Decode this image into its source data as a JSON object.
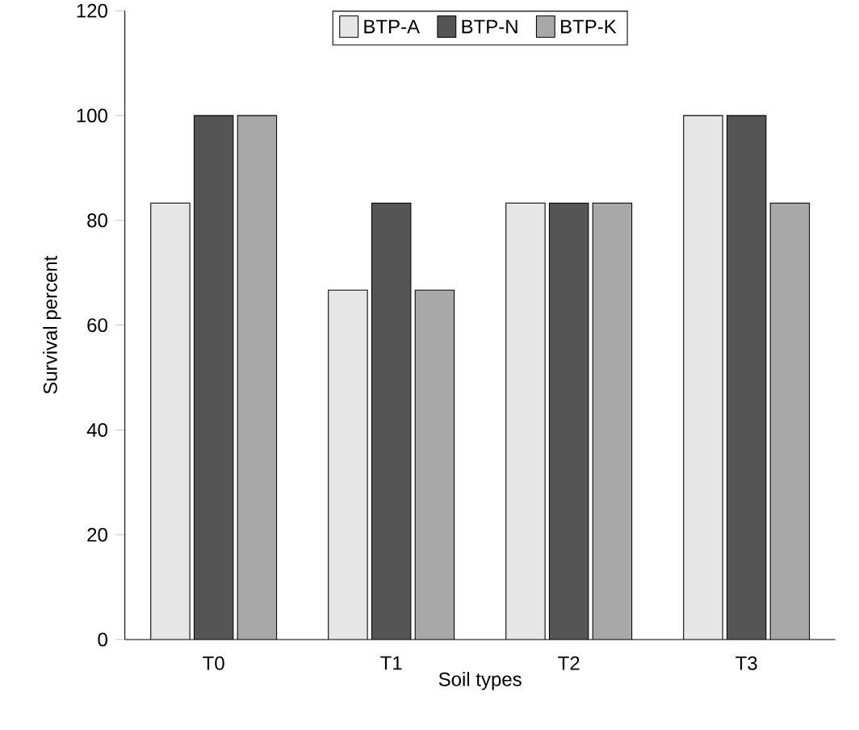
{
  "chart_data": {
    "type": "bar",
    "xlabel": "Soil types",
    "ylabel": "Survival percent",
    "categories": [
      "T0",
      "T1",
      "T2",
      "T3"
    ],
    "series": [
      {
        "name": "BTP-A",
        "color": "#e6e6e6",
        "values": [
          83.3,
          66.7,
          83.3,
          100
        ]
      },
      {
        "name": "BTP-N",
        "color": "#555555",
        "values": [
          100,
          83.3,
          83.3,
          100
        ]
      },
      {
        "name": "BTP-K",
        "color": "#a8a8a8",
        "values": [
          100,
          66.7,
          83.3,
          83.3
        ]
      }
    ],
    "ylim": [
      0,
      120
    ],
    "yticks": [
      0,
      20,
      40,
      60,
      80,
      100,
      120
    ],
    "grid": false,
    "legend": "top"
  }
}
